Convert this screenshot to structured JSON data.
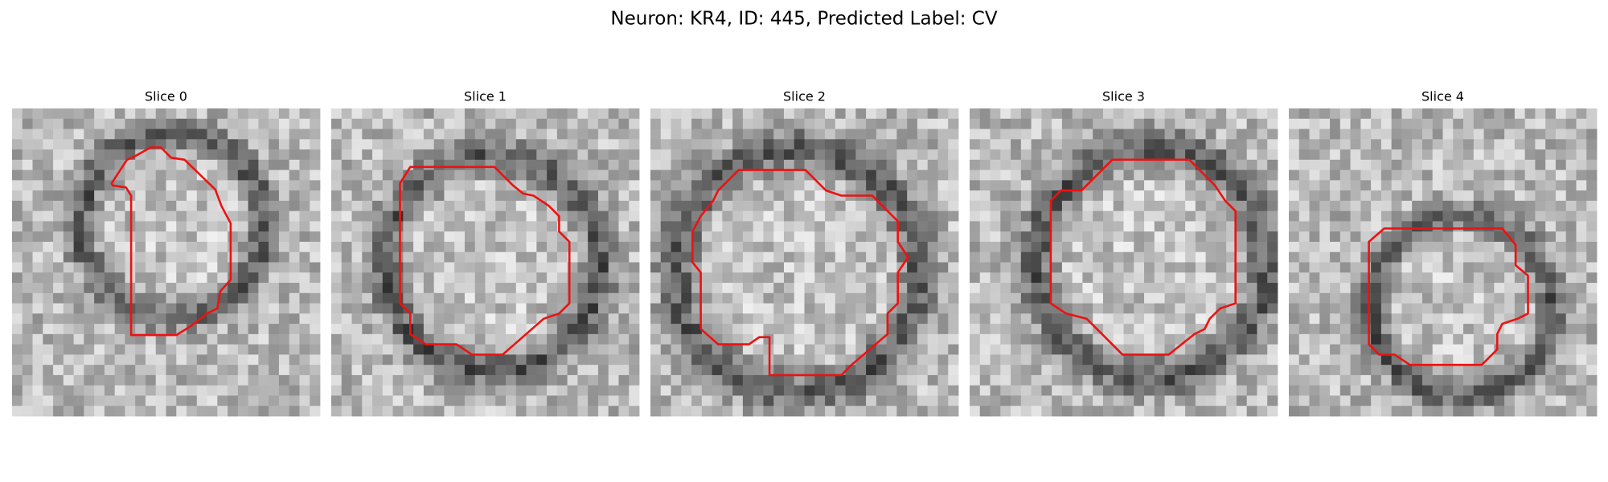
{
  "title": "Neuron: KR4, ID: 445, Predicted Label: CV",
  "panels": [
    {
      "title": "Slice 0"
    },
    {
      "title": "Slice 1"
    },
    {
      "title": "Slice 2"
    },
    {
      "title": "Slice 3"
    },
    {
      "title": "Slice 4"
    }
  ]
}
